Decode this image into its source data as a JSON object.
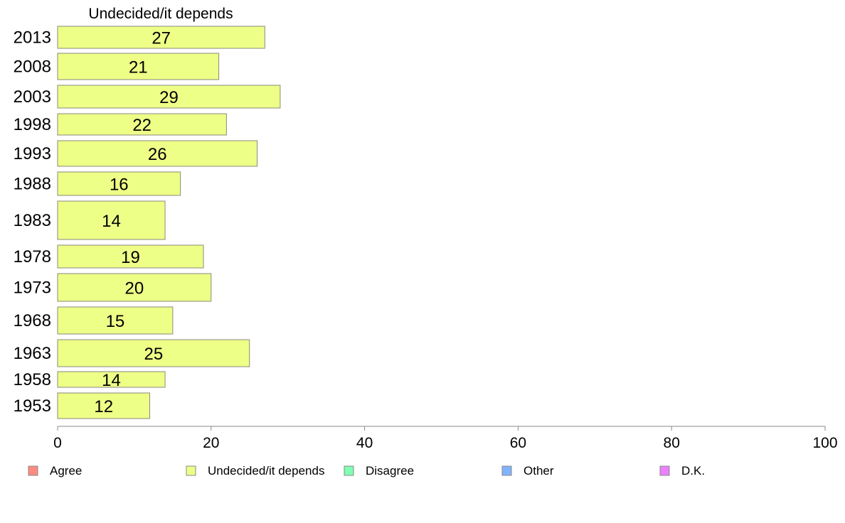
{
  "chart_data": {
    "type": "bar",
    "orientation": "horizontal",
    "title": "Undecided/it depends",
    "xlabel": "",
    "ylabel": "",
    "xlim": [
      0,
      100
    ],
    "x_ticks": [
      "0",
      "20",
      "40",
      "60",
      "80",
      "100"
    ],
    "grid": false,
    "legend_position": "bottom",
    "categories": [
      "2013",
      "2008",
      "2003",
      "1998",
      "1993",
      "1988",
      "1983",
      "1978",
      "1973",
      "1968",
      "1963",
      "1958",
      "1953"
    ],
    "series": [
      {
        "name": "Undecided/it depends",
        "color": "#eeff88",
        "values": [
          27,
          21,
          29,
          22,
          26,
          16,
          14,
          19,
          20,
          15,
          25,
          14,
          12
        ],
        "labels": [
          "27",
          "21",
          "29",
          "22",
          "26",
          "16",
          "14",
          "19",
          "20",
          "15",
          "25",
          "14",
          "12"
        ]
      }
    ],
    "legend": [
      {
        "label": "Agree",
        "color": "#ff8a80"
      },
      {
        "label": "Undecided/it depends",
        "color": "#eeff88"
      },
      {
        "label": "Disagree",
        "color": "#80ffb4"
      },
      {
        "label": "Other",
        "color": "#80b4ff"
      },
      {
        "label": "D.K.",
        "color": "#ea80ff"
      }
    ]
  }
}
